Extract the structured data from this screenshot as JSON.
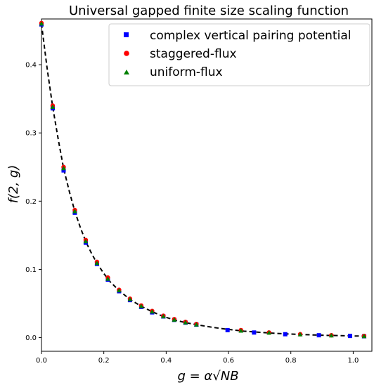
{
  "chart_data": {
    "type": "scatter",
    "title": "Universal gapped finite size scaling function",
    "xlabel": "g = α√NB",
    "ylabel": "f(2, g)",
    "xlim": [
      0.0,
      1.06
    ],
    "ylim": [
      -0.02,
      0.467
    ],
    "xticks": [
      0.0,
      0.2,
      0.4,
      0.6,
      0.8,
      1.0
    ],
    "yticks": [
      0.0,
      0.1,
      0.2,
      0.3,
      0.4
    ],
    "xtick_labels": [
      "0.0",
      "0.2",
      "0.4",
      "0.6",
      "0.8",
      "1.0"
    ],
    "ytick_labels": [
      "0.0",
      "0.1",
      "0.2",
      "0.3",
      "0.4"
    ],
    "grid": false,
    "legend_position": "top-right",
    "series": [
      {
        "name": "complex vertical pairing potential",
        "marker": "square",
        "color": "#0000ff",
        "x": [
          0.0,
          0.036,
          0.071,
          0.107,
          0.142,
          0.178,
          0.213,
          0.249,
          0.284,
          0.32,
          0.355,
          0.391,
          0.426,
          0.462,
          0.497,
          0.597,
          0.682,
          0.782,
          0.89,
          0.99,
          1.035
        ],
        "y": [
          0.459,
          0.336,
          0.245,
          0.183,
          0.139,
          0.108,
          0.085,
          0.068,
          0.055,
          0.045,
          0.037,
          0.031,
          0.026,
          0.022,
          0.019,
          0.011,
          0.0075,
          0.005,
          0.0035,
          0.0025,
          0.002
        ]
      },
      {
        "name": "staggered-flux",
        "marker": "circle",
        "color": "#ff0000",
        "x": [
          0.0,
          0.036,
          0.071,
          0.107,
          0.142,
          0.178,
          0.213,
          0.249,
          0.284,
          0.32,
          0.355,
          0.391,
          0.426,
          0.462,
          0.497,
          0.64,
          0.73,
          0.83,
          0.93,
          1.035
        ],
        "y": [
          0.461,
          0.34,
          0.25,
          0.187,
          0.143,
          0.111,
          0.088,
          0.07,
          0.057,
          0.047,
          0.039,
          0.032,
          0.027,
          0.023,
          0.02,
          0.011,
          0.0075,
          0.005,
          0.0035,
          0.0025
        ]
      },
      {
        "name": "uniform-flux",
        "marker": "triangle",
        "color": "#008000",
        "x": [
          0.0,
          0.036,
          0.071,
          0.107,
          0.142,
          0.178,
          0.213,
          0.249,
          0.284,
          0.32,
          0.355,
          0.391,
          0.426,
          0.462,
          0.497,
          0.64,
          0.73,
          0.83,
          0.93,
          1.035
        ],
        "y": [
          0.46,
          0.338,
          0.248,
          0.185,
          0.141,
          0.109,
          0.086,
          0.069,
          0.056,
          0.046,
          0.038,
          0.031,
          0.026,
          0.022,
          0.019,
          0.01,
          0.007,
          0.0045,
          0.003,
          0.002
        ]
      }
    ],
    "fit_curve": {
      "style": "dashed",
      "color": "#000000",
      "x": [
        0.0,
        0.018,
        0.036,
        0.054,
        0.071,
        0.09,
        0.107,
        0.125,
        0.142,
        0.16,
        0.178,
        0.2,
        0.22,
        0.249,
        0.284,
        0.32,
        0.355,
        0.391,
        0.426,
        0.462,
        0.497,
        0.55,
        0.6,
        0.65,
        0.7,
        0.75,
        0.8,
        0.85,
        0.9,
        0.95,
        1.0,
        1.035
      ],
      "y": [
        0.46,
        0.395,
        0.338,
        0.29,
        0.248,
        0.213,
        0.185,
        0.161,
        0.141,
        0.124,
        0.109,
        0.094,
        0.082,
        0.069,
        0.056,
        0.046,
        0.038,
        0.031,
        0.026,
        0.022,
        0.019,
        0.015,
        0.012,
        0.0095,
        0.0078,
        0.0063,
        0.0052,
        0.0043,
        0.0035,
        0.003,
        0.0025,
        0.0022
      ]
    }
  }
}
